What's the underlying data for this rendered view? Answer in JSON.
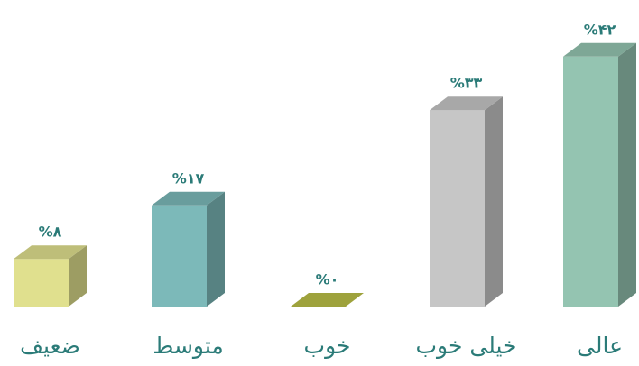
{
  "chart_data": {
    "type": "bar3d",
    "categories": [
      "ضعیف",
      "متوسط",
      "خوب",
      "خیلی خوب",
      "عالی"
    ],
    "values": [
      8,
      17,
      0,
      33,
      42
    ],
    "value_labels": [
      "%۸",
      "%۱۷",
      "%۰",
      "%۳۳",
      "%۴۲"
    ],
    "colors": [
      "#e0e08e",
      "#7cb9b9",
      "#9ea23c",
      "#c6c6c6",
      "#94c4b1"
    ]
  }
}
